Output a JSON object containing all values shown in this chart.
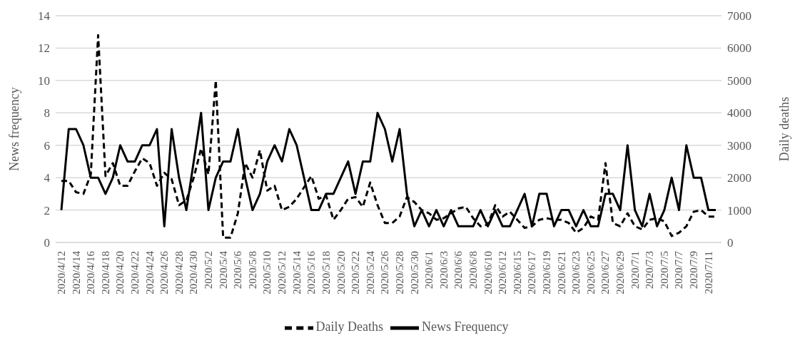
{
  "chart_data": {
    "type": "line",
    "categories": [
      "2020/4/12",
      null,
      "2020/4/14",
      null,
      "2020/4/16",
      null,
      "2020/4/18",
      null,
      "2020/4/20",
      null,
      "2020/4/22",
      null,
      "2020/4/24",
      null,
      "2020/4/26",
      null,
      "2020/4/28",
      null,
      "2020/4/30",
      null,
      "2020/5/2",
      null,
      "2020/5/4",
      null,
      "2020/5/6",
      null,
      "2020/5/8",
      null,
      "2020/5/10",
      null,
      "2020/5/12",
      null,
      "2020/5/14",
      null,
      "2020/5/16",
      null,
      "2020/5/18",
      null,
      "2020/5/20",
      null,
      "2020/5/22",
      null,
      "2020/5/24",
      null,
      "2020/5/26",
      null,
      "2020/5/28",
      null,
      "2020/5/30",
      null,
      "2020/6/1",
      null,
      "2020/6/3",
      null,
      "2020/6/6",
      null,
      "2020/6/8",
      null,
      "2020/6/10",
      null,
      "2020/6/12",
      null,
      "2020/6/15",
      null,
      "2020/6/17",
      null,
      "2020/6/19",
      null,
      "2020/6/21",
      null,
      "2020/6/23",
      null,
      "2020/6/25",
      null,
      "2020/6/27",
      null,
      "2020/6/29",
      null,
      "2020/7/1",
      null,
      "2020/7/3",
      null,
      "2020/7/5",
      null,
      "2020/7/7",
      null,
      "2020/7/9",
      null,
      "2020/7/11",
      null
    ],
    "series": [
      {
        "name": "News Frequency",
        "color": "#000000",
        "line_style": "solid",
        "values": [
          2,
          7,
          7,
          6,
          4,
          4,
          3,
          4,
          6,
          5,
          5,
          6,
          6,
          7,
          1,
          7,
          4,
          2,
          5,
          8,
          2,
          4,
          5,
          5,
          7,
          4,
          2,
          3,
          5,
          6,
          5,
          7,
          6,
          4,
          2,
          2,
          3,
          3,
          4,
          5,
          3,
          5,
          5,
          8,
          7,
          5,
          7,
          3,
          1,
          2,
          1,
          2,
          1,
          2,
          1,
          1,
          1,
          2,
          1,
          2,
          1,
          1,
          2,
          3,
          1,
          3,
          3,
          1,
          2,
          2,
          1,
          2,
          1,
          1,
          3,
          3,
          2,
          6,
          2,
          1,
          3,
          1,
          2,
          4,
          2,
          6,
          4,
          4,
          2,
          2
        ]
      },
      {
        "name": "Daily Deaths",
        "color": "#000000",
        "line_style": "dashed",
        "axis": "y2",
        "values": [
          1900,
          1900,
          1550,
          1500,
          2100,
          6400,
          2050,
          2450,
          1750,
          1750,
          2200,
          2600,
          2450,
          1750,
          2150,
          1950,
          1150,
          1300,
          2000,
          2900,
          2100,
          5000,
          150,
          150,
          900,
          2450,
          2000,
          2850,
          1600,
          1750,
          1000,
          1100,
          1350,
          1700,
          2050,
          1350,
          1450,
          700,
          1000,
          1350,
          1400,
          1100,
          1850,
          1150,
          600,
          600,
          800,
          1400,
          1250,
          1000,
          900,
          700,
          750,
          900,
          1050,
          1100,
          750,
          500,
          550,
          1150,
          800,
          950,
          700,
          450,
          500,
          700,
          750,
          700,
          700,
          600,
          300,
          450,
          800,
          700,
          2450,
          600,
          500,
          900,
          500,
          400,
          700,
          750,
          650,
          200,
          300,
          500,
          950,
          1000,
          800,
          800
        ]
      }
    ],
    "ylabel": "News frequency",
    "y2label": "Daily deaths",
    "ylim": [
      0,
      14
    ],
    "yticks": [
      0,
      2,
      4,
      6,
      8,
      10,
      12,
      14
    ],
    "y2lim": [
      0,
      7000
    ],
    "y2ticks": [
      0,
      1000,
      2000,
      3000,
      4000,
      5000,
      6000,
      7000
    ],
    "grid": "y",
    "legend": "bottom"
  }
}
